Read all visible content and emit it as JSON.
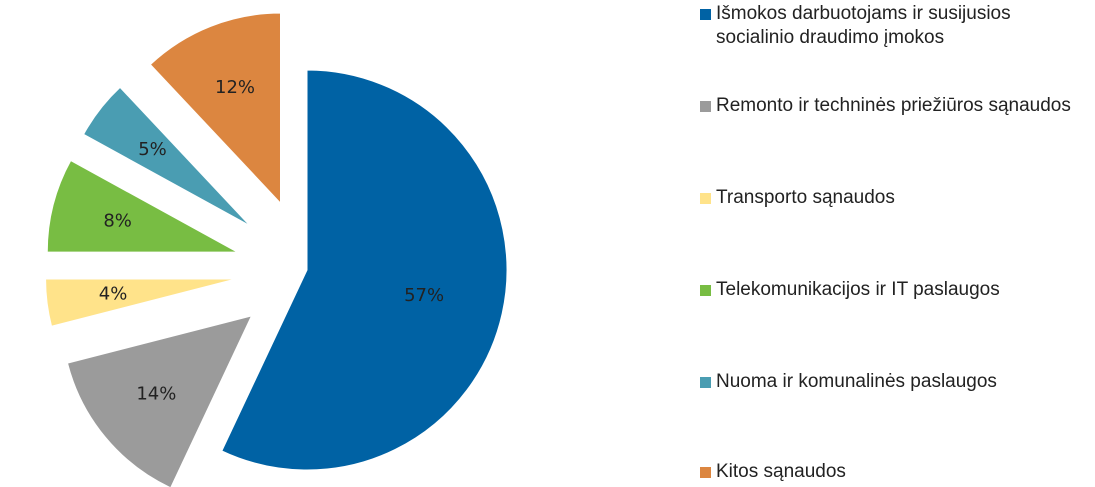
{
  "chart_data": {
    "type": "pie",
    "categories": [
      "Išmokos darbuotojams ir susijusios socialinio draudimo įmokos",
      "Remonto ir techninės priežiūros sąnaudos",
      "Transporto sąnaudos",
      "Telekomunikacijos ir IT paslaugos",
      "Nuoma ir komunalinės paslaugos",
      "Kitos sąnaudos"
    ],
    "values": [
      57,
      14,
      4,
      8,
      5,
      12
    ],
    "value_labels": [
      "57%",
      "14%",
      "4%",
      "8%",
      "5%",
      "12%"
    ],
    "colors": [
      "#0062a4",
      "#9b9b9b",
      "#ffe38a",
      "#78bd43",
      "#4a9db2",
      "#dc8640"
    ],
    "legend": "right"
  }
}
